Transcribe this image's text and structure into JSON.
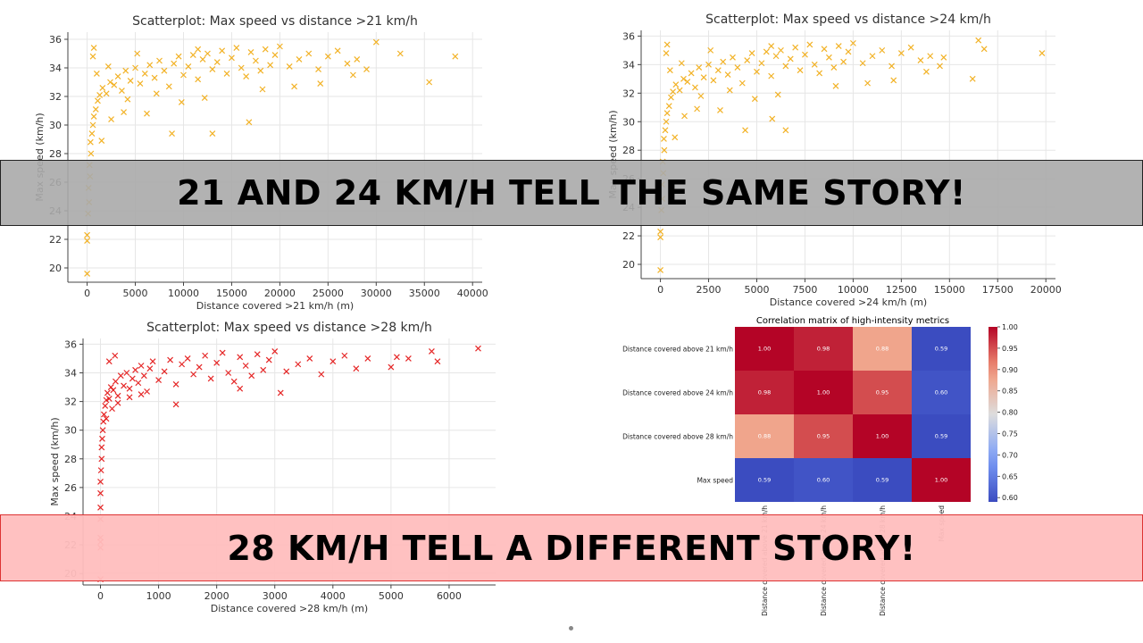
{
  "banners": {
    "top": "21 AND 24 KM/H TELL THE SAME STORY!",
    "bottom": "28 KM/H TELL A DIFFERENT STORY!"
  },
  "colors": {
    "scatter21": "#f0a500",
    "scatter24": "#f0a500",
    "scatter28": "#e00000"
  },
  "chart_data": [
    {
      "type": "scatter",
      "title": "Scatterplot: Max speed vs distance >21 km/h",
      "xlabel": "Distance covered >21 km/h (m)",
      "ylabel": "Max speed (km/h)",
      "xlim": [
        -2000,
        41000
      ],
      "ylim": [
        19,
        36.5
      ],
      "xticks": [
        0,
        5000,
        10000,
        15000,
        20000,
        25000,
        30000,
        35000,
        40000
      ],
      "yticks": [
        20,
        22,
        24,
        26,
        28,
        30,
        32,
        34,
        36
      ],
      "grid": true,
      "marker": "x",
      "points": [
        [
          0,
          19.6
        ],
        [
          0,
          21.9
        ],
        [
          0,
          22.3
        ],
        [
          100,
          23.8
        ],
        [
          200,
          24.6
        ],
        [
          150,
          25.6
        ],
        [
          300,
          26.4
        ],
        [
          250,
          27.2
        ],
        [
          400,
          28.0
        ],
        [
          350,
          28.8
        ],
        [
          500,
          29.4
        ],
        [
          600,
          30.0
        ],
        [
          700,
          30.6
        ],
        [
          900,
          31.1
        ],
        [
          1100,
          31.7
        ],
        [
          1300,
          32.1
        ],
        [
          1600,
          32.6
        ],
        [
          2000,
          32.2
        ],
        [
          2400,
          33.0
        ],
        [
          2800,
          32.8
        ],
        [
          3200,
          33.4
        ],
        [
          3600,
          32.4
        ],
        [
          4000,
          33.8
        ],
        [
          4500,
          33.1
        ],
        [
          5000,
          34.0
        ],
        [
          5500,
          32.9
        ],
        [
          6000,
          33.6
        ],
        [
          6500,
          34.2
        ],
        [
          7000,
          33.3
        ],
        [
          7500,
          34.5
        ],
        [
          8000,
          33.8
        ],
        [
          8500,
          32.7
        ],
        [
          9000,
          34.3
        ],
        [
          9500,
          34.8
        ],
        [
          10000,
          33.5
        ],
        [
          10500,
          34.1
        ],
        [
          11000,
          34.9
        ],
        [
          11500,
          33.2
        ],
        [
          12000,
          34.6
        ],
        [
          12500,
          35.0
        ],
        [
          13000,
          33.9
        ],
        [
          13500,
          34.4
        ],
        [
          14000,
          35.2
        ],
        [
          14500,
          33.6
        ],
        [
          15000,
          34.7
        ],
        [
          15500,
          35.4
        ],
        [
          16000,
          34.0
        ],
        [
          16500,
          33.4
        ],
        [
          17000,
          35.1
        ],
        [
          17500,
          34.5
        ],
        [
          18000,
          33.8
        ],
        [
          18500,
          35.3
        ],
        [
          19000,
          34.2
        ],
        [
          19500,
          34.9
        ],
        [
          20000,
          35.5
        ],
        [
          21000,
          34.1
        ],
        [
          22000,
          34.6
        ],
        [
          23000,
          35.0
        ],
        [
          24000,
          33.9
        ],
        [
          25000,
          34.8
        ],
        [
          26000,
          35.2
        ],
        [
          27000,
          34.3
        ],
        [
          28000,
          34.6
        ],
        [
          29000,
          33.9
        ],
        [
          30000,
          35.8
        ],
        [
          32500,
          35.0
        ],
        [
          35500,
          33.0
        ],
        [
          38200,
          34.8
        ],
        [
          6200,
          30.8
        ],
        [
          8800,
          29.4
        ],
        [
          13000,
          29.4
        ],
        [
          1500,
          28.9
        ],
        [
          2500,
          30.4
        ],
        [
          3800,
          30.9
        ],
        [
          16800,
          30.2
        ],
        [
          1000,
          33.6
        ],
        [
          600,
          34.8
        ],
        [
          700,
          35.4
        ],
        [
          11500,
          35.3
        ],
        [
          9800,
          31.6
        ],
        [
          21500,
          32.7
        ],
        [
          4200,
          31.8
        ],
        [
          7200,
          32.2
        ],
        [
          2200,
          34.1
        ],
        [
          5200,
          35.0
        ],
        [
          12200,
          31.9
        ],
        [
          18200,
          32.5
        ],
        [
          24200,
          32.9
        ],
        [
          27600,
          33.5
        ]
      ]
    },
    {
      "type": "scatter",
      "title": "Scatterplot: Max speed vs distance >24 km/h",
      "xlabel": "Distance covered >24 km/h (m)",
      "ylabel": "Max speed (km/h)",
      "xlim": [
        -1000,
        20500
      ],
      "ylim": [
        19,
        36.4
      ],
      "xticks": [
        0,
        2500,
        5000,
        7500,
        10000,
        12500,
        15000,
        17500,
        20000
      ],
      "yticks": [
        20,
        22,
        24,
        26,
        28,
        30,
        32,
        34,
        36
      ],
      "grid": true,
      "marker": "x",
      "points": [
        [
          0,
          19.6
        ],
        [
          0,
          21.9
        ],
        [
          0,
          22.3
        ],
        [
          50,
          23.8
        ],
        [
          100,
          24.6
        ],
        [
          80,
          25.6
        ],
        [
          150,
          26.4
        ],
        [
          120,
          27.2
        ],
        [
          200,
          28.0
        ],
        [
          180,
          28.8
        ],
        [
          250,
          29.4
        ],
        [
          300,
          30.0
        ],
        [
          350,
          30.6
        ],
        [
          450,
          31.1
        ],
        [
          550,
          31.7
        ],
        [
          650,
          32.1
        ],
        [
          800,
          32.6
        ],
        [
          1000,
          32.2
        ],
        [
          1200,
          33.0
        ],
        [
          1400,
          32.8
        ],
        [
          1600,
          33.4
        ],
        [
          1800,
          32.4
        ],
        [
          2000,
          33.8
        ],
        [
          2250,
          33.1
        ],
        [
          2500,
          34.0
        ],
        [
          2750,
          32.9
        ],
        [
          3000,
          33.6
        ],
        [
          3250,
          34.2
        ],
        [
          3500,
          33.3
        ],
        [
          3750,
          34.5
        ],
        [
          4000,
          33.8
        ],
        [
          4250,
          32.7
        ],
        [
          4500,
          34.3
        ],
        [
          4750,
          34.8
        ],
        [
          5000,
          33.5
        ],
        [
          5250,
          34.1
        ],
        [
          5500,
          34.9
        ],
        [
          5750,
          33.2
        ],
        [
          6000,
          34.6
        ],
        [
          6250,
          35.0
        ],
        [
          6500,
          33.9
        ],
        [
          6750,
          34.4
        ],
        [
          7000,
          35.2
        ],
        [
          7250,
          33.6
        ],
        [
          7500,
          34.7
        ],
        [
          7750,
          35.4
        ],
        [
          8000,
          34.0
        ],
        [
          8250,
          33.4
        ],
        [
          8500,
          35.1
        ],
        [
          8750,
          34.5
        ],
        [
          9000,
          33.8
        ],
        [
          9250,
          35.3
        ],
        [
          9500,
          34.2
        ],
        [
          9750,
          34.9
        ],
        [
          10000,
          35.5
        ],
        [
          10500,
          34.1
        ],
        [
          11000,
          34.6
        ],
        [
          11500,
          35.0
        ],
        [
          12000,
          33.9
        ],
        [
          12500,
          34.8
        ],
        [
          13000,
          35.2
        ],
        [
          13500,
          34.3
        ],
        [
          14000,
          34.6
        ],
        [
          14500,
          33.9
        ],
        [
          14700,
          34.5
        ],
        [
          16200,
          33.0
        ],
        [
          16500,
          35.7
        ],
        [
          19800,
          34.8
        ],
        [
          3100,
          30.8
        ],
        [
          4400,
          29.4
        ],
        [
          6500,
          29.4
        ],
        [
          750,
          28.9
        ],
        [
          1250,
          30.4
        ],
        [
          1900,
          30.9
        ],
        [
          5800,
          30.2
        ],
        [
          500,
          33.6
        ],
        [
          300,
          34.8
        ],
        [
          350,
          35.4
        ],
        [
          5750,
          35.3
        ],
        [
          4900,
          31.6
        ],
        [
          10750,
          32.7
        ],
        [
          2100,
          31.8
        ],
        [
          3600,
          32.2
        ],
        [
          1100,
          34.1
        ],
        [
          2600,
          35.0
        ],
        [
          6100,
          31.9
        ],
        [
          9100,
          32.5
        ],
        [
          12100,
          32.9
        ],
        [
          13800,
          33.5
        ],
        [
          16800,
          35.1
        ]
      ]
    },
    {
      "type": "scatter",
      "title": "Scatterplot: Max speed vs distance >28 km/h",
      "xlabel": "Distance covered >28 km/h (m)",
      "ylabel": "Max speed (km/h)",
      "xlim": [
        -300,
        6800
      ],
      "ylim": [
        19.2,
        36.4
      ],
      "xticks": [
        0,
        1000,
        2000,
        3000,
        4000,
        5000,
        6000
      ],
      "yticks": [
        20,
        22,
        24,
        26,
        28,
        30,
        32,
        34,
        36
      ],
      "grid": true,
      "marker": "x",
      "points": [
        [
          0,
          19.6
        ],
        [
          0,
          21.8
        ],
        [
          0,
          22.2
        ],
        [
          0,
          22.5
        ],
        [
          0,
          23.8
        ],
        [
          0,
          24.6
        ],
        [
          0,
          25.6
        ],
        [
          0,
          26.4
        ],
        [
          10,
          27.2
        ],
        [
          20,
          28.0
        ],
        [
          20,
          28.8
        ],
        [
          30,
          29.4
        ],
        [
          40,
          30.0
        ],
        [
          50,
          30.6
        ],
        [
          60,
          31.1
        ],
        [
          80,
          31.7
        ],
        [
          100,
          32.1
        ],
        [
          120,
          32.6
        ],
        [
          150,
          32.2
        ],
        [
          180,
          33.0
        ],
        [
          220,
          32.8
        ],
        [
          260,
          33.4
        ],
        [
          300,
          32.4
        ],
        [
          350,
          33.8
        ],
        [
          400,
          33.1
        ],
        [
          450,
          34.0
        ],
        [
          500,
          32.9
        ],
        [
          550,
          33.6
        ],
        [
          600,
          34.2
        ],
        [
          650,
          33.3
        ],
        [
          700,
          34.5
        ],
        [
          750,
          33.8
        ],
        [
          800,
          32.7
        ],
        [
          850,
          34.3
        ],
        [
          900,
          34.8
        ],
        [
          1000,
          33.5
        ],
        [
          1100,
          34.1
        ],
        [
          1200,
          34.9
        ],
        [
          1300,
          33.2
        ],
        [
          1400,
          34.6
        ],
        [
          1500,
          35.0
        ],
        [
          1600,
          33.9
        ],
        [
          1700,
          34.4
        ],
        [
          1800,
          35.2
        ],
        [
          1900,
          33.6
        ],
        [
          2000,
          34.7
        ],
        [
          2100,
          35.4
        ],
        [
          2200,
          34.0
        ],
        [
          2300,
          33.4
        ],
        [
          2400,
          35.1
        ],
        [
          2500,
          34.5
        ],
        [
          2600,
          33.8
        ],
        [
          2700,
          35.3
        ],
        [
          2800,
          34.2
        ],
        [
          2900,
          34.9
        ],
        [
          3000,
          35.5
        ],
        [
          3200,
          34.1
        ],
        [
          3400,
          34.6
        ],
        [
          3600,
          35.0
        ],
        [
          3800,
          33.9
        ],
        [
          4000,
          34.8
        ],
        [
          4200,
          35.2
        ],
        [
          4400,
          34.3
        ],
        [
          4600,
          35.0
        ],
        [
          5000,
          34.4
        ],
        [
          5100,
          35.1
        ],
        [
          5300,
          35.0
        ],
        [
          5700,
          35.5
        ],
        [
          5800,
          34.8
        ],
        [
          6500,
          35.7
        ],
        [
          100,
          30.8
        ],
        [
          200,
          31.5
        ],
        [
          300,
          31.9
        ],
        [
          500,
          32.3
        ],
        [
          700,
          32.5
        ],
        [
          150,
          34.8
        ],
        [
          250,
          35.2
        ],
        [
          3100,
          32.6
        ],
        [
          1300,
          31.8
        ],
        [
          2400,
          32.9
        ]
      ]
    },
    {
      "type": "heatmap",
      "title": "Correlation matrix of high-intensity metrics",
      "row_labels": [
        "Distance covered above 21 km/h",
        "Distance covered above 24 km/h",
        "Distance covered above 28 km/h",
        "Max speed"
      ],
      "col_labels": [
        "Distance covered above 21 km/h",
        "Distance covered above 24 km/h",
        "Distance covered above 28 km/h",
        "Max speed"
      ],
      "values": [
        [
          "1.00",
          "0.98",
          "0.88",
          "0.59"
        ],
        [
          "0.98",
          "1.00",
          "0.95",
          "0.60"
        ],
        [
          "0.88",
          "0.95",
          "1.00",
          "0.59"
        ],
        [
          "0.59",
          "0.60",
          "0.59",
          "1.00"
        ]
      ],
      "colorbar_ticks": [
        "1.00",
        "0.95",
        "0.90",
        "0.85",
        "0.80",
        "0.75",
        "0.70",
        "0.65",
        "0.60"
      ],
      "vmin": 0.59,
      "vmax": 1.0,
      "colormap": "coolwarm"
    }
  ]
}
